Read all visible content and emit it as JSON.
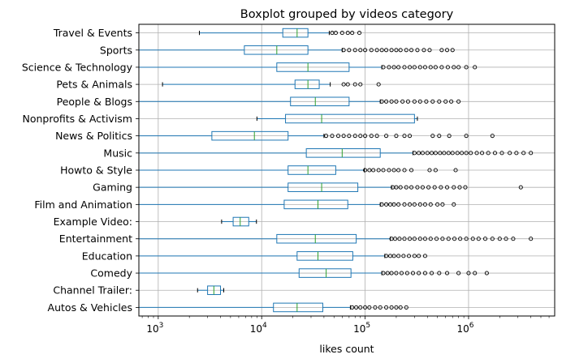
{
  "chart_data": {
    "type": "boxplot",
    "orientation": "horizontal",
    "title": "Boxplot grouped by videos category",
    "xlabel": "likes count",
    "xscale": "log",
    "xlim": [
      650,
      6800000
    ],
    "xticks": [
      {
        "value": 1000,
        "base": "10",
        "exp": "3"
      },
      {
        "value": 10000,
        "base": "10",
        "exp": "4"
      },
      {
        "value": 100000,
        "base": "10",
        "exp": "5"
      },
      {
        "value": 1000000,
        "base": "10",
        "exp": "6"
      }
    ],
    "grid": true,
    "colors": {
      "box": "#1f77b4",
      "median": "#2ca02c",
      "flier": "#000000",
      "grid": "#b0b0b0"
    },
    "categories": [
      "Travel & Events",
      "Sports",
      "Science & Technology",
      "Pets & Animals",
      "People & Blogs",
      "Nonprofits & Activism",
      "News & Politics",
      "Music",
      "Howto & Style",
      "Gaming",
      "Film and Animation",
      "Example Video:",
      "Entertainment",
      "Education",
      "Comedy",
      "Channel Trailer:",
      "Autos & Vehicles"
    ],
    "boxes": [
      {
        "whislo": 2500,
        "q1": 16000,
        "med": 22000,
        "q3": 28000,
        "whishi": 45000,
        "fliers": [
          48000,
          52000,
          60000,
          68000,
          75000,
          88000
        ]
      },
      {
        "whislo": 650,
        "q1": 6800,
        "med": 14000,
        "q3": 28000,
        "whishi": 60000,
        "fliers": [
          62000,
          70000,
          80000,
          90000,
          100000,
          115000,
          130000,
          145000,
          160000,
          180000,
          200000,
          220000,
          250000,
          280000,
          320000,
          370000,
          420000,
          550000,
          620000,
          700000
        ]
      },
      {
        "whislo": 650,
        "q1": 14000,
        "med": 28000,
        "q3": 70000,
        "whishi": 145000,
        "fliers": [
          150000,
          170000,
          190000,
          210000,
          240000,
          270000,
          300000,
          340000,
          380000,
          430000,
          480000,
          550000,
          630000,
          720000,
          800000,
          950000,
          1150000
        ]
      },
      {
        "whislo": 1100,
        "q1": 21000,
        "med": 28000,
        "q3": 36000,
        "whishi": 46000,
        "fliers": [
          62000,
          68000,
          80000,
          90000,
          135000
        ]
      },
      {
        "whislo": 650,
        "q1": 19000,
        "med": 33000,
        "q3": 70000,
        "whishi": 140000,
        "fliers": [
          145000,
          160000,
          180000,
          200000,
          230000,
          260000,
          300000,
          340000,
          390000,
          450000,
          520000,
          600000,
          680000,
          800000
        ]
      },
      {
        "whislo": 9000,
        "q1": 17000,
        "med": 38000,
        "q3": 300000,
        "whishi": 320000,
        "fliers": []
      },
      {
        "whislo": 650,
        "q1": 3300,
        "med": 8500,
        "q3": 18000,
        "whishi": 40000,
        "fliers": [
          42000,
          48000,
          55000,
          62000,
          70000,
          80000,
          90000,
          100000,
          115000,
          130000,
          160000,
          200000,
          240000,
          270000,
          450000,
          520000,
          650000,
          950000,
          1700000
        ]
      },
      {
        "whislo": 650,
        "q1": 27000,
        "med": 60000,
        "q3": 140000,
        "whishi": 290000,
        "fliers": [
          300000,
          330000,
          360000,
          400000,
          440000,
          480000,
          530000,
          580000,
          640000,
          700000,
          780000,
          860000,
          950000,
          1050000,
          1200000,
          1350000,
          1550000,
          1800000,
          2100000,
          2500000,
          2900000,
          3400000,
          4000000
        ]
      },
      {
        "whislo": 650,
        "q1": 18000,
        "med": 28000,
        "q3": 52000,
        "whishi": 98000,
        "fliers": [
          100000,
          110000,
          120000,
          135000,
          150000,
          170000,
          190000,
          210000,
          240000,
          280000,
          420000,
          480000,
          750000
        ]
      },
      {
        "whislo": 650,
        "q1": 18000,
        "med": 38000,
        "q3": 85000,
        "whishi": 180000,
        "fliers": [
          185000,
          200000,
          220000,
          250000,
          280000,
          320000,
          360000,
          410000,
          470000,
          540000,
          620000,
          720000,
          820000,
          930000,
          3200000
        ]
      },
      {
        "whislo": 650,
        "q1": 16500,
        "med": 35000,
        "q3": 68000,
        "whishi": 140000,
        "fliers": [
          145000,
          160000,
          175000,
          190000,
          210000,
          240000,
          270000,
          300000,
          340000,
          380000,
          430000,
          500000,
          560000,
          720000
        ]
      },
      {
        "whislo": 4100,
        "q1": 5300,
        "med": 6200,
        "q3": 7500,
        "whishi": 8900,
        "fliers": []
      },
      {
        "whislo": 650,
        "q1": 14000,
        "med": 33000,
        "q3": 82000,
        "whishi": 175000,
        "fliers": [
          180000,
          195000,
          215000,
          240000,
          270000,
          300000,
          340000,
          380000,
          430000,
          490000,
          560000,
          640000,
          730000,
          830000,
          950000,
          1100000,
          1250000,
          1450000,
          1700000,
          2000000,
          2300000,
          2700000,
          4000000
        ]
      },
      {
        "whislo": 650,
        "q1": 22000,
        "med": 35000,
        "q3": 76000,
        "whishi": 155000,
        "fliers": [
          160000,
          175000,
          190000,
          210000,
          235000,
          265000,
          300000,
          330000,
          380000
        ]
      },
      {
        "whislo": 650,
        "q1": 23000,
        "med": 42000,
        "q3": 73000,
        "whishi": 145000,
        "fliers": [
          150000,
          165000,
          180000,
          200000,
          225000,
          255000,
          290000,
          330000,
          380000,
          440000,
          520000,
          620000,
          800000,
          1000000,
          1150000,
          1500000
        ]
      },
      {
        "whislo": 2400,
        "q1": 3000,
        "med": 3450,
        "q3": 4000,
        "whishi": 4300,
        "fliers": []
      },
      {
        "whislo": 650,
        "q1": 13000,
        "med": 22000,
        "q3": 39000,
        "whishi": 72000,
        "fliers": [
          75000,
          82000,
          90000,
          100000,
          110000,
          125000,
          140000,
          160000,
          180000,
          200000,
          220000,
          250000
        ]
      }
    ]
  }
}
